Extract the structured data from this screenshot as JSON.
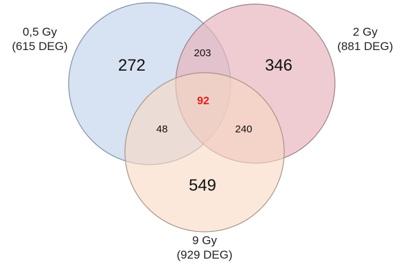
{
  "diagram": {
    "type": "venn-3",
    "sets": [
      {
        "id": "set_05gy",
        "name": "0,5 Gy",
        "count_label": "(615 DEG)",
        "fill": "#c9d8ee",
        "stroke": "#7f8fa3"
      },
      {
        "id": "set_2gy",
        "name": "2 Gy",
        "count_label": "(881 DEG)",
        "fill": "#e7b7be",
        "stroke": "#9a7f84"
      },
      {
        "id": "set_9gy",
        "name": "9 Gy",
        "count_label": "(929 DEG)",
        "fill": "#f8d8c2",
        "stroke": "#a69385"
      }
    ],
    "regions": {
      "only_05gy": "272",
      "only_2gy": "346",
      "only_9gy": "549",
      "05gy_2gy": "203",
      "05gy_9gy": "48",
      "2gy_9gy": "240",
      "all_three": "92"
    },
    "highlight_color": "#e81c1c"
  }
}
